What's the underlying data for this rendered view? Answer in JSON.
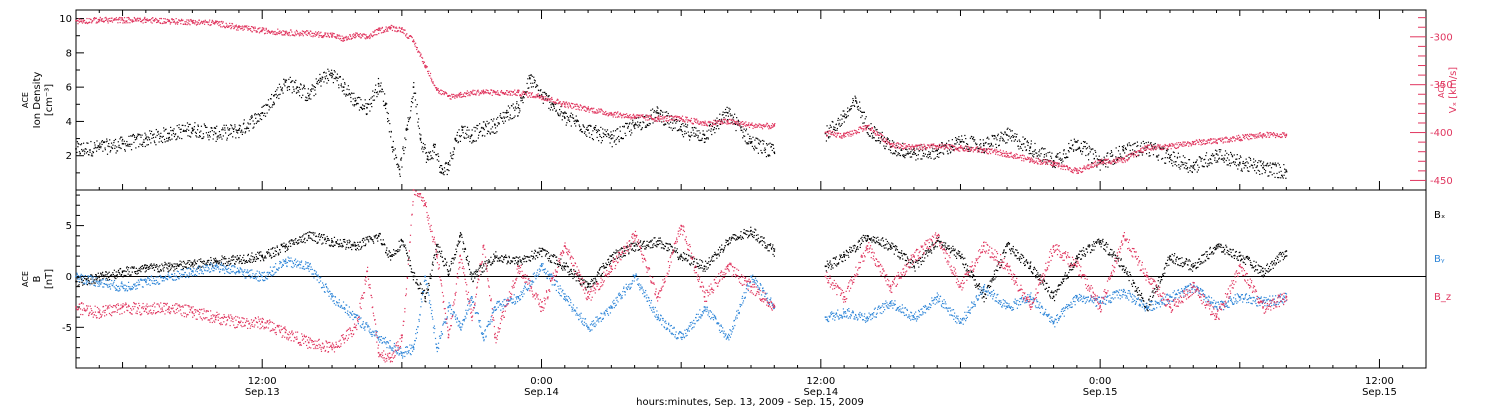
{
  "figure": {
    "footer": "hours:minutes, Sep. 13, 2009 - Sep. 15, 2009",
    "time_ticks": [
      {
        "t": 12,
        "hm": "12:00",
        "day": "Sep.13"
      },
      {
        "t": 24,
        "hm": "0:00",
        "day": "Sep.14"
      },
      {
        "t": 36,
        "hm": "12:00",
        "day": "Sep.14"
      },
      {
        "t": 48,
        "hm": "0:00",
        "day": "Sep.15"
      },
      {
        "t": 60,
        "hm": "12:00",
        "day": "Sep.15"
      }
    ]
  },
  "chart_data": [
    {
      "type": "scatter",
      "xlim": [
        4,
        62
      ],
      "gap": [
        34,
        36.2
      ],
      "data_end": 56,
      "left_axis": {
        "label_lines": [
          "ACE",
          "Ion Density",
          "[cm⁻³]"
        ],
        "ylim": [
          0,
          10.5
        ],
        "ticks": [
          2,
          4,
          6,
          8,
          10
        ],
        "minor": 1,
        "color": "#000000"
      },
      "right_axis": {
        "label_lines": [
          "ACE",
          "Vₓ [km/s]"
        ],
        "ylim": [
          -460,
          -272
        ],
        "ticks": [
          -300,
          -350,
          -400,
          -450
        ],
        "minor": 10,
        "color": "#e0365f"
      },
      "series": [
        {
          "key": "density",
          "color": "#000000",
          "axis": "left",
          "x": [
            4,
            5,
            6,
            7,
            8,
            9,
            10,
            11,
            12,
            12.5,
            13,
            13.5,
            14,
            14.5,
            15,
            15.5,
            16,
            16.5,
            17,
            17.3,
            17.6,
            17.9,
            18.2,
            18.5,
            18.8,
            19.1,
            19.4,
            19.7,
            20,
            20.3,
            20.6,
            21,
            21.5,
            22,
            22.5,
            23,
            23.5,
            24,
            24.5,
            25,
            25.5,
            26,
            27,
            28,
            29,
            30,
            31,
            32,
            33,
            34,
            36.2,
            37,
            37.5,
            38,
            39,
            40,
            41,
            42,
            43,
            44,
            45,
            46,
            47,
            48,
            49,
            50,
            51,
            52,
            53,
            54,
            55,
            56
          ],
          "y": [
            2.4,
            2.5,
            2.7,
            3.0,
            3.3,
            3.6,
            3.3,
            3.5,
            4.5,
            5.5,
            6.3,
            6.0,
            5.5,
            6.5,
            6.8,
            6.0,
            5.2,
            4.8,
            6.2,
            5.0,
            2.5,
            1.2,
            3.5,
            6.0,
            3.0,
            1.8,
            2.5,
            1.0,
            1.5,
            3.0,
            3.5,
            3.2,
            3.6,
            3.8,
            4.5,
            4.8,
            6.5,
            5.5,
            5.0,
            4.2,
            4.0,
            3.5,
            3.0,
            3.8,
            4.5,
            3.5,
            3.2,
            4.5,
            2.8,
            2.2,
            3.3,
            4.3,
            5.2,
            3.7,
            2.5,
            2.2,
            2.3,
            2.8,
            2.6,
            3.2,
            2.5,
            1.7,
            2.8,
            1.6,
            2.3,
            2.5,
            1.9,
            1.4,
            2.1,
            1.6,
            1.3,
            1.1
          ]
        },
        {
          "key": "vx",
          "color": "#e0365f",
          "axis": "right",
          "x": [
            4,
            5,
            6,
            7,
            8,
            9,
            10,
            11,
            12,
            13,
            14,
            15,
            15.5,
            16,
            16.5,
            17,
            17.5,
            18,
            18.5,
            19,
            19.5,
            20,
            20.5,
            21,
            21.5,
            22,
            23,
            24,
            25,
            26,
            27,
            28,
            29,
            30,
            31,
            32,
            33,
            34,
            36.2,
            37,
            38,
            39,
            40,
            41,
            42,
            43,
            44,
            45,
            46,
            47,
            48,
            49,
            50,
            51,
            52,
            53,
            54,
            55,
            56
          ],
          "y": [
            -283,
            -282,
            -282,
            -282,
            -283,
            -284,
            -285,
            -290,
            -293,
            -295,
            -296,
            -298,
            -302,
            -298,
            -300,
            -293,
            -290,
            -292,
            -305,
            -330,
            -355,
            -362,
            -360,
            -358,
            -357,
            -358,
            -358,
            -362,
            -370,
            -375,
            -380,
            -383,
            -385,
            -385,
            -390,
            -388,
            -392,
            -393,
            -400,
            -403,
            -393,
            -412,
            -415,
            -414,
            -416,
            -418,
            -422,
            -428,
            -432,
            -440,
            -430,
            -428,
            -415,
            -414,
            -410,
            -408,
            -405,
            -402,
            -402
          ]
        }
      ]
    },
    {
      "type": "scatter",
      "xlim": [
        4,
        62
      ],
      "gap": [
        34,
        36.2
      ],
      "data_end": 56,
      "left_axis": {
        "label_lines": [
          "ACE",
          "B",
          "[nT]"
        ],
        "ylim": [
          -9,
          8.5
        ],
        "ticks": [
          5,
          0,
          -5
        ],
        "minor": 1,
        "zero_line": 0
      },
      "series": [
        {
          "key": "bx",
          "name": "Bₓ",
          "color": "#000000",
          "x": [
            4,
            5,
            6,
            7,
            8,
            9,
            10,
            11,
            12,
            13,
            14,
            15,
            16,
            17,
            17.5,
            18,
            18.5,
            19,
            19.5,
            20,
            20.5,
            21,
            22,
            23,
            24,
            25,
            26,
            27,
            28,
            29,
            30,
            31,
            32,
            33,
            34,
            36.2,
            37,
            38,
            39,
            40,
            41,
            42,
            43,
            44,
            45,
            46,
            47,
            48,
            49,
            50,
            51,
            52,
            53,
            54,
            55,
            56
          ],
          "y": [
            -0.5,
            0.0,
            0.5,
            0.8,
            1.0,
            1.2,
            1.5,
            1.8,
            2.0,
            3.0,
            4.0,
            3.5,
            3.0,
            4.0,
            2.0,
            3.5,
            0.0,
            -2.0,
            3.0,
            0.5,
            4.0,
            0.0,
            2.0,
            1.5,
            2.5,
            1.0,
            -1.0,
            2.0,
            3.0,
            3.5,
            2.0,
            1.0,
            3.5,
            4.5,
            2.5,
            1.0,
            2.0,
            4.0,
            3.0,
            1.0,
            3.5,
            2.0,
            -2.0,
            3.0,
            1.0,
            -2.0,
            2.0,
            3.5,
            1.0,
            -3.0,
            2.0,
            1.0,
            3.0,
            2.0,
            0.5,
            2.5
          ]
        },
        {
          "key": "by",
          "name": "Bᵧ",
          "color": "#2f86d8",
          "x": [
            4,
            5,
            6,
            7,
            8,
            9,
            10,
            11,
            12,
            13,
            14,
            15,
            16,
            17,
            18,
            18.5,
            19,
            19.5,
            20,
            20.5,
            21,
            21.5,
            22,
            23,
            24,
            25,
            26,
            27,
            28,
            29,
            30,
            31,
            32,
            33,
            34,
            36.2,
            37,
            38,
            39,
            40,
            41,
            42,
            43,
            44,
            45,
            46,
            47,
            48,
            49,
            50,
            51,
            52,
            53,
            54,
            55,
            56
          ],
          "y": [
            0.0,
            -0.5,
            -1.0,
            -0.5,
            0.0,
            0.5,
            1.0,
            0.5,
            0.0,
            1.5,
            1.0,
            -2.0,
            -4.0,
            -6.0,
            -7.5,
            -7.0,
            0.0,
            -7.0,
            -3.0,
            -5.0,
            -2.0,
            -6.0,
            -3.0,
            -2.0,
            1.0,
            -2.0,
            -5.0,
            -3.0,
            0.0,
            -4.0,
            -6.0,
            -3.0,
            -6.0,
            0.0,
            -3.0,
            -4.0,
            -3.5,
            -4.0,
            -2.5,
            -4.0,
            -2.0,
            -4.5,
            -1.0,
            -3.0,
            -2.0,
            -4.5,
            -2.0,
            -2.5,
            -1.5,
            -3.0,
            -2.0,
            -1.0,
            -3.0,
            -2.0,
            -2.5,
            -2.0
          ]
        },
        {
          "key": "bz",
          "name": "B_z",
          "color": "#e0365f",
          "x": [
            4,
            5,
            6,
            7,
            8,
            9,
            10,
            11,
            12,
            13,
            14,
            15,
            16,
            16.5,
            17,
            17.5,
            18,
            18.5,
            19,
            19.5,
            20,
            20.5,
            21,
            21.5,
            22,
            23,
            24,
            25,
            26,
            27,
            28,
            29,
            30,
            31,
            32,
            33,
            34,
            36.2,
            37,
            38,
            39,
            40,
            41,
            42,
            43,
            44,
            45,
            46,
            47,
            48,
            49,
            50,
            51,
            52,
            53,
            54,
            55,
            56
          ],
          "y": [
            -3.0,
            -3.5,
            -3.0,
            -3.2,
            -3.0,
            -3.5,
            -4.0,
            -4.5,
            -4.5,
            -5.5,
            -6.5,
            -7.0,
            -5.0,
            0.5,
            -7.5,
            -8.0,
            -6.0,
            8.5,
            7.0,
            2.0,
            -6.0,
            2.0,
            -4.0,
            3.0,
            -6.0,
            1.0,
            -3.0,
            3.0,
            -2.0,
            1.0,
            4.0,
            -2.0,
            5.0,
            -2.0,
            1.0,
            -1.0,
            -3.0,
            0.0,
            -2.0,
            3.0,
            -1.0,
            2.0,
            4.0,
            -1.0,
            3.0,
            1.0,
            -3.0,
            3.0,
            1.0,
            -3.0,
            4.0,
            0.0,
            -3.0,
            -1.0,
            -4.0,
            1.0,
            -3.0,
            -2.0
          ]
        }
      ]
    }
  ]
}
